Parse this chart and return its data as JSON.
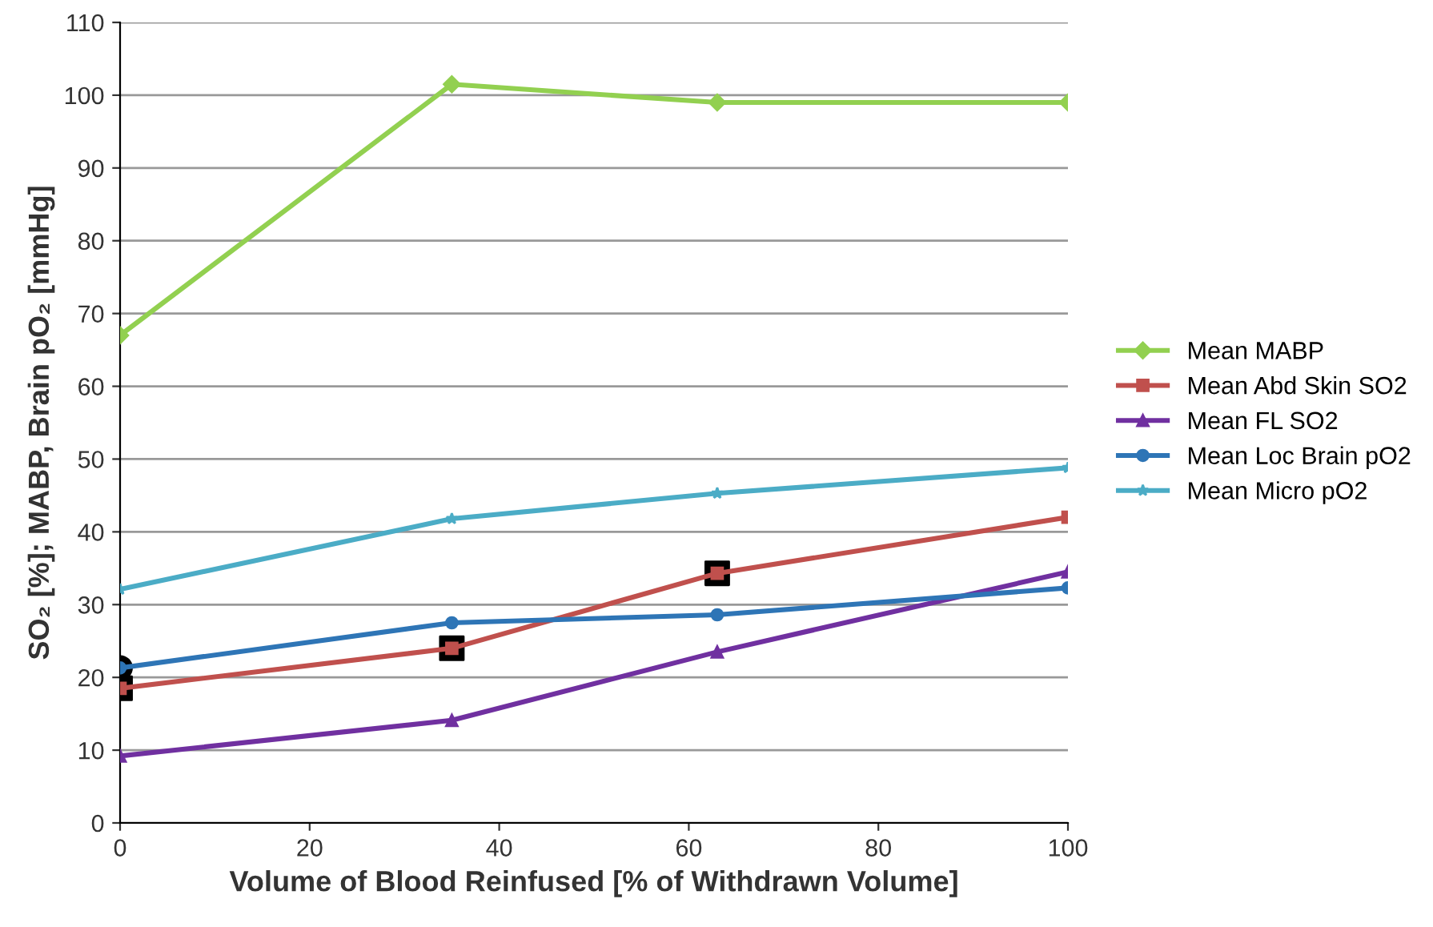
{
  "chart_data": {
    "type": "line",
    "xlabel": "Volume of Blood Reinfused [% of Withdrawn Volume]",
    "ylabel": "SO₂ [%]; MABP, Brain pO₂ [mmHg]",
    "x": [
      0,
      35,
      63,
      100
    ],
    "series": [
      {
        "name": "Mean MABP",
        "color": "#92d050",
        "marker": "diamond",
        "values": [
          67,
          101.5,
          99,
          99
        ]
      },
      {
        "name": "Mean Abd Skin SO2",
        "color": "#c0504d",
        "marker": "square",
        "values": [
          18.5,
          24,
          34.3,
          42
        ]
      },
      {
        "name": "Mean FL SO2",
        "color": "#7030a0",
        "marker": "triangle",
        "values": [
          9.2,
          14.1,
          23.5,
          34.5
        ]
      },
      {
        "name": "Mean Loc Brain pO2",
        "color": "#2e75b6",
        "marker": "circle",
        "values": [
          21.3,
          27.5,
          28.6,
          32.3
        ]
      },
      {
        "name": "Mean Micro pO2",
        "color": "#4bacc6",
        "marker": "star",
        "values": [
          32.1,
          41.8,
          45.3,
          48.8
        ]
      },
      {
        "type": "scatter",
        "color": "#000000",
        "marker": "square",
        "x": [
          0,
          35,
          63
        ],
        "values": [
          18.5,
          24,
          34.3
        ]
      },
      {
        "type": "scatter",
        "color": "#000000",
        "marker": "circle",
        "x": [
          0
        ],
        "values": [
          21.3
        ]
      }
    ],
    "xlim": [
      0,
      100
    ],
    "xticks": [
      0,
      20,
      40,
      60,
      80,
      100
    ],
    "ylim": [
      0,
      110
    ],
    "yticks": [
      0,
      10,
      20,
      30,
      40,
      50,
      60,
      70,
      80,
      90,
      100,
      110
    ],
    "grid": "y",
    "legend": "right"
  }
}
